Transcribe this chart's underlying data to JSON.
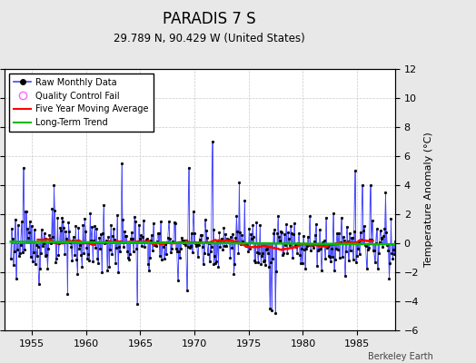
{
  "title": "PARADIS 7 S",
  "subtitle": "29.789 N, 90.429 W (United States)",
  "ylabel": "Temperature Anomaly (°C)",
  "credit": "Berkeley Earth",
  "ylim": [
    -6,
    12
  ],
  "yticks": [
    -6,
    -4,
    -2,
    0,
    2,
    4,
    6,
    8,
    10,
    12
  ],
  "xlim": [
    1952.5,
    1988.5
  ],
  "xticks": [
    1955,
    1960,
    1965,
    1970,
    1975,
    1980,
    1985
  ],
  "line_color": "#4444ff",
  "marker_color": "#000000",
  "ma_color": "#ff0000",
  "trend_color": "#00bb00",
  "qc_color": "#ff66ff",
  "background": "#e8e8e8",
  "plot_bg": "#ffffff",
  "seed": 123
}
